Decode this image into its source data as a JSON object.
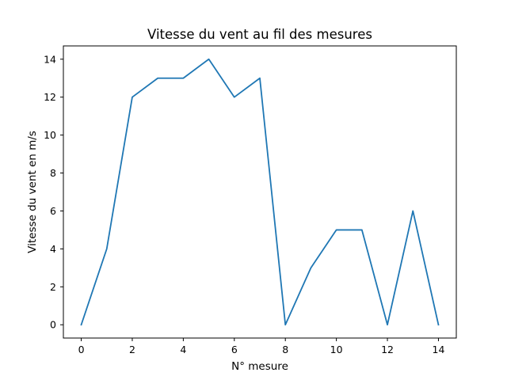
{
  "chart_data": {
    "type": "line",
    "title": "Vitesse du vent au fil des mesures",
    "xlabel": "N° mesure",
    "ylabel": "Vitesse du vent en m/s",
    "x": [
      0,
      1,
      2,
      3,
      4,
      5,
      6,
      7,
      8,
      9,
      10,
      11,
      12,
      13,
      14
    ],
    "series": [
      {
        "values": [
          0,
          4,
          12,
          13,
          13,
          14,
          12,
          13,
          0,
          3,
          5,
          5,
          0,
          6,
          0
        ],
        "color": "#1f77b4"
      }
    ],
    "xlim": [
      -0.7,
      14.7
    ],
    "ylim": [
      -0.7,
      14.7
    ],
    "xticks": [
      "0",
      "2",
      "4",
      "6",
      "8",
      "10",
      "12",
      "14"
    ],
    "yticks": [
      "0",
      "2",
      "4",
      "6",
      "8",
      "10",
      "12",
      "14"
    ],
    "grid": false,
    "legend": false
  }
}
